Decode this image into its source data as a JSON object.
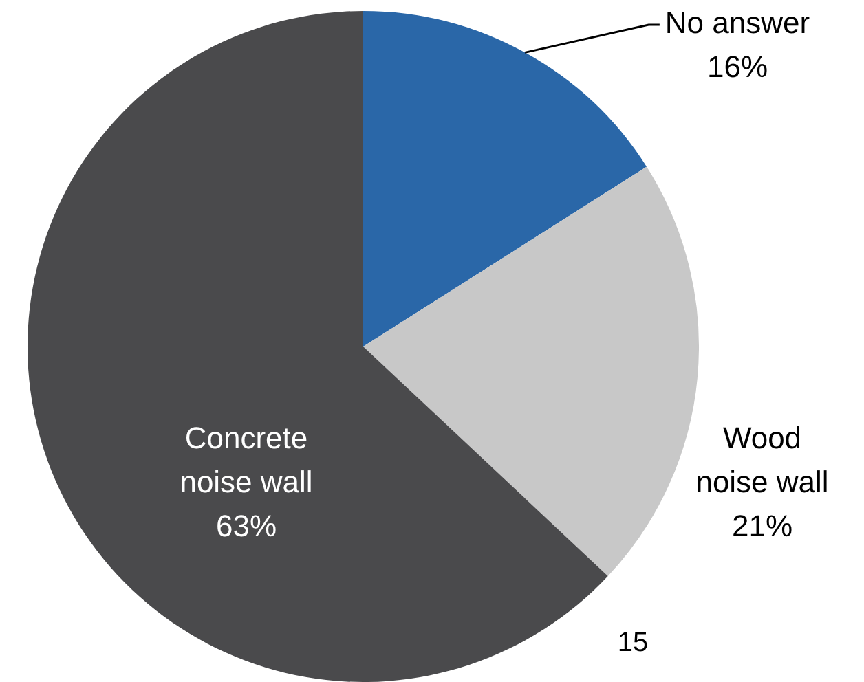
{
  "chart_data": {
    "type": "pie",
    "categories": [
      "No answer",
      "Wood noise wall",
      "Concrete noise wall"
    ],
    "values": [
      16,
      21,
      63
    ],
    "colors": [
      "#2a67a8",
      "#c8c8c8",
      "#4a4a4c"
    ],
    "value_labels": [
      "16%",
      "21%",
      "63%"
    ],
    "annotations": [
      "15"
    ]
  }
}
